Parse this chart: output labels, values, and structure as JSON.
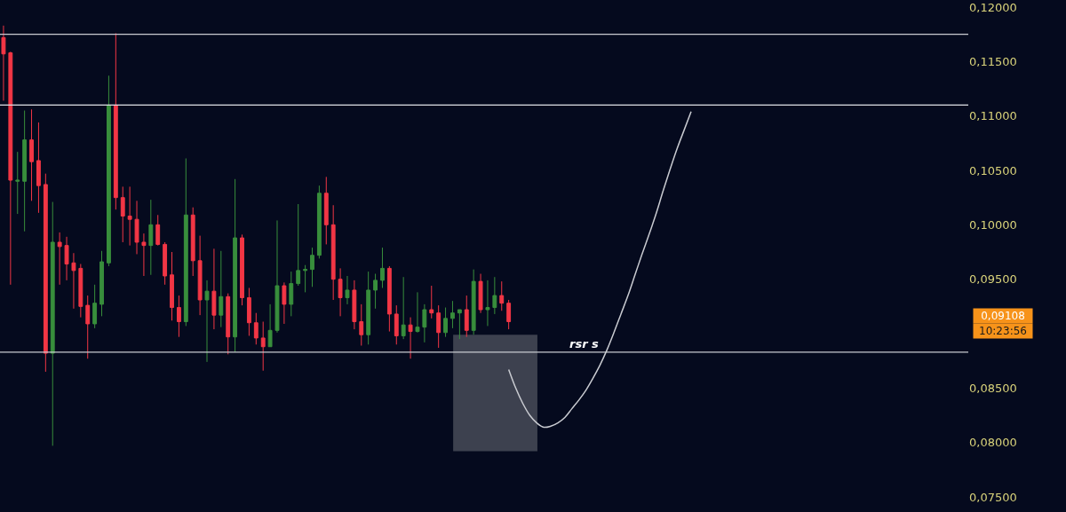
{
  "chart_data": {
    "type": "candlestick",
    "categories": [
      null,
      null,
      null,
      null,
      null,
      null,
      null,
      null,
      null,
      null,
      null,
      null,
      null,
      null,
      null,
      null,
      null,
      null,
      null,
      null,
      null,
      null,
      null,
      null,
      null,
      null,
      null,
      null,
      null,
      null,
      null,
      null,
      null,
      null,
      null,
      null,
      null,
      null,
      null,
      null,
      null,
      null,
      null,
      null,
      null,
      null,
      null,
      null,
      null,
      null,
      null,
      null,
      null,
      null,
      null,
      null,
      null,
      null,
      null,
      null,
      null,
      null,
      null,
      null,
      null,
      null,
      null,
      null,
      null,
      null,
      null,
      null,
      null,
      null,
      null,
      null,
      null,
      null,
      null,
      null,
      null,
      null,
      null,
      null,
      null,
      null,
      null,
      null,
      null,
      null,
      null,
      null,
      null,
      null,
      null,
      null,
      null,
      null,
      null,
      null,
      null,
      null,
      null,
      null,
      null,
      null,
      null,
      null,
      null,
      null,
      null,
      null,
      null,
      null,
      null,
      null,
      null,
      null,
      null,
      null,
      null,
      null,
      null,
      null,
      null,
      null,
      null,
      null,
      null,
      null,
      null,
      null,
      null,
      null,
      null,
      null,
      null,
      null
    ],
    "ohlc": [
      [
        0.1172,
        0.1183,
        0.1114,
        0.1157
      ],
      [
        0.1158,
        0.1159,
        0.0945,
        0.1041
      ],
      [
        0.104,
        0.1067,
        0.101,
        0.1041
      ],
      [
        0.104,
        0.1105,
        0.0994,
        0.1078
      ],
      [
        0.1078,
        0.1106,
        0.1022,
        0.1058
      ],
      [
        0.1059,
        0.1094,
        0.1011,
        0.1036
      ],
      [
        0.1037,
        0.1047,
        0.0865,
        0.0882
      ],
      [
        0.0882,
        0.1021,
        0.0797,
        0.0984
      ],
      [
        0.0984,
        0.0993,
        0.0945,
        0.098
      ],
      [
        0.0981,
        0.0989,
        0.0949,
        0.0964
      ],
      [
        0.0965,
        0.0974,
        0.0923,
        0.0958
      ],
      [
        0.096,
        0.0964,
        0.0915,
        0.0925
      ],
      [
        0.0926,
        0.0935,
        0.0877,
        0.0909
      ],
      [
        0.0909,
        0.0945,
        0.0905,
        0.0928
      ],
      [
        0.0927,
        0.0976,
        0.0916,
        0.0966
      ],
      [
        0.0965,
        0.1137,
        0.0962,
        0.111
      ],
      [
        0.111,
        0.1176,
        0.1014,
        0.1025
      ],
      [
        0.1025,
        0.1035,
        0.0984,
        0.1008
      ],
      [
        0.1008,
        0.1035,
        0.0981,
        0.1005
      ],
      [
        0.1005,
        0.1022,
        0.0973,
        0.0984
      ],
      [
        0.0984,
        0.0992,
        0.0953,
        0.0981
      ],
      [
        0.0981,
        0.1023,
        0.0954,
        0.1
      ],
      [
        0.1,
        0.1009,
        0.0981,
        0.0982
      ],
      [
        0.0982,
        0.0984,
        0.0945,
        0.0953
      ],
      [
        0.0954,
        0.0975,
        0.0912,
        0.0924
      ],
      [
        0.0924,
        0.0935,
        0.0897,
        0.0911
      ],
      [
        0.0911,
        0.1061,
        0.0907,
        0.1009
      ],
      [
        0.1009,
        0.1016,
        0.0953,
        0.0967
      ],
      [
        0.0967,
        0.099,
        0.0917,
        0.0931
      ],
      [
        0.0931,
        0.0949,
        0.0874,
        0.0939
      ],
      [
        0.0939,
        0.0978,
        0.0904,
        0.0917
      ],
      [
        0.0917,
        0.0976,
        0.0906,
        0.0934
      ],
      [
        0.0934,
        0.0937,
        0.0881,
        0.0897
      ],
      [
        0.0897,
        0.1042,
        0.0883,
        0.0988
      ],
      [
        0.0988,
        0.0991,
        0.0926,
        0.0933
      ],
      [
        0.0933,
        0.0942,
        0.0898,
        0.091
      ],
      [
        0.091,
        0.0919,
        0.089,
        0.0896
      ],
      [
        0.0896,
        0.0911,
        0.0866,
        0.0888
      ],
      [
        0.0888,
        0.0927,
        0.0888,
        0.0903
      ],
      [
        0.0903,
        0.1004,
        0.0901,
        0.0944
      ],
      [
        0.0944,
        0.0947,
        0.0909,
        0.0927
      ],
      [
        0.0927,
        0.0957,
        0.0916,
        0.0946
      ],
      [
        0.0946,
        0.1019,
        0.0944,
        0.0958
      ],
      [
        0.0958,
        0.0963,
        0.0938,
        0.0959
      ],
      [
        0.0959,
        0.0979,
        0.0943,
        0.0972
      ],
      [
        0.0972,
        0.1036,
        0.0969,
        0.1029
      ],
      [
        0.1029,
        0.1044,
        0.0982,
        0.1
      ],
      [
        0.1,
        0.1018,
        0.0931,
        0.095
      ],
      [
        0.095,
        0.096,
        0.0916,
        0.0933
      ],
      [
        0.0933,
        0.0953,
        0.0927,
        0.094
      ],
      [
        0.094,
        0.0949,
        0.0904,
        0.0911
      ],
      [
        0.0911,
        0.0927,
        0.0889,
        0.0899
      ],
      [
        0.0899,
        0.0957,
        0.089,
        0.094
      ],
      [
        0.094,
        0.0955,
        0.0923,
        0.0949
      ],
      [
        0.0949,
        0.0979,
        0.0942,
        0.096
      ],
      [
        0.096,
        0.0962,
        0.0902,
        0.0918
      ],
      [
        0.0918,
        0.0926,
        0.089,
        0.0898
      ],
      [
        0.0898,
        0.0952,
        0.0895,
        0.0908
      ],
      [
        0.0908,
        0.0915,
        0.0877,
        0.0902
      ],
      [
        0.0902,
        0.0938,
        0.0901,
        0.0906
      ],
      [
        0.0906,
        0.0927,
        0.0892,
        0.0922
      ],
      [
        0.0922,
        0.0944,
        0.0914,
        0.0919
      ],
      [
        0.0919,
        0.0926,
        0.0887,
        0.0901
      ],
      [
        0.0901,
        0.0924,
        0.0897,
        0.0914
      ],
      [
        0.0914,
        0.093,
        0.0905,
        0.0919
      ],
      [
        0.0919,
        0.0922,
        0.0895,
        0.0922
      ],
      [
        0.0922,
        0.0935,
        0.0897,
        0.0903
      ],
      [
        0.0903,
        0.0959,
        0.0899,
        0.0948
      ],
      [
        0.0948,
        0.0955,
        0.0919,
        0.0922
      ],
      [
        0.0922,
        0.0949,
        0.0907,
        0.0924
      ],
      [
        0.0924,
        0.0952,
        0.0918,
        0.0935
      ],
      [
        0.0935,
        0.0948,
        0.0921,
        0.0928
      ],
      [
        0.0928,
        0.0931,
        0.0904,
        0.0911
      ],
      null,
      null,
      null,
      null,
      null,
      null,
      null,
      null,
      null,
      null,
      null,
      null,
      null,
      null,
      null,
      null,
      null,
      null,
      null,
      null,
      null,
      null,
      null,
      null,
      null,
      null,
      null,
      null,
      null,
      null,
      null,
      null,
      null,
      null,
      null,
      null,
      null,
      null,
      null,
      null,
      null,
      null,
      null,
      null,
      null,
      null,
      null,
      null,
      null,
      null,
      null,
      null,
      null,
      null,
      null,
      null,
      null,
      null,
      null,
      null,
      null,
      null,
      null,
      null,
      null
    ],
    "series": [
      {
        "type": "line",
        "color": "#c9cbd1",
        "values": [
          null,
          null,
          null,
          null,
          null,
          null,
          null,
          null,
          null,
          null,
          null,
          null,
          null,
          null,
          null,
          null,
          null,
          null,
          null,
          null,
          null,
          null,
          null,
          null,
          null,
          null,
          null,
          null,
          null,
          null,
          null,
          null,
          null,
          null,
          null,
          null,
          null,
          null,
          null,
          null,
          null,
          null,
          null,
          null,
          null,
          null,
          null,
          null,
          null,
          null,
          null,
          null,
          null,
          null,
          null,
          null,
          null,
          null,
          null,
          null,
          null,
          null,
          null,
          null,
          null,
          null,
          null,
          null,
          null,
          null,
          null,
          null,
          0.0867,
          0.085,
          0.0836,
          0.0825,
          0.0818,
          0.0814,
          0.0815,
          0.0818,
          0.0823,
          0.0831,
          0.0839,
          0.0848,
          0.0859,
          0.0871,
          0.0885,
          0.0901,
          0.0918,
          0.0935,
          0.0954,
          0.0973,
          0.0991,
          0.101,
          0.1031,
          0.1051,
          0.107,
          0.1087,
          0.1104,
          null,
          null,
          null,
          null,
          null,
          null,
          null,
          null,
          null,
          null,
          null,
          null,
          null,
          null,
          null,
          null,
          null,
          null,
          null,
          null,
          null,
          null,
          null,
          null,
          null,
          null,
          null,
          null,
          null,
          null,
          null,
          null,
          null,
          null,
          null,
          null,
          null,
          null,
          null
        ]
      }
    ],
    "ylim": [
      0.075,
      0.12
    ],
    "yticks": [
      {
        "value": 0.075,
        "label": "0,07500"
      },
      {
        "value": 0.08,
        "label": "0,08000"
      },
      {
        "value": 0.085,
        "label": "0,08500"
      },
      {
        "value": 0.095,
        "label": "0,09500"
      },
      {
        "value": 0.1,
        "label": "0,10000"
      },
      {
        "value": 0.105,
        "label": "0,10500"
      },
      {
        "value": 0.11,
        "label": "0,11000"
      },
      {
        "value": 0.115,
        "label": "0,11500"
      },
      {
        "value": 0.12,
        "label": "0,12000"
      }
    ],
    "tick_labels": "y",
    "ref_lines": [
      {
        "axis": "y",
        "value": 0.1175,
        "color": "#c9cbd1"
      },
      {
        "axis": "y",
        "value": 0.111,
        "color": "#e0e2e8"
      },
      {
        "axis": "y",
        "value": 0.0883,
        "label": "rsr s",
        "color": "#c9cbd1"
      }
    ],
    "bands": [
      {
        "axis": "y",
        "from": 0.0792,
        "to": 0.0899,
        "color": "#3d414f"
      }
    ],
    "annotations": [
      "0,09108",
      "10:23:56"
    ]
  }
}
